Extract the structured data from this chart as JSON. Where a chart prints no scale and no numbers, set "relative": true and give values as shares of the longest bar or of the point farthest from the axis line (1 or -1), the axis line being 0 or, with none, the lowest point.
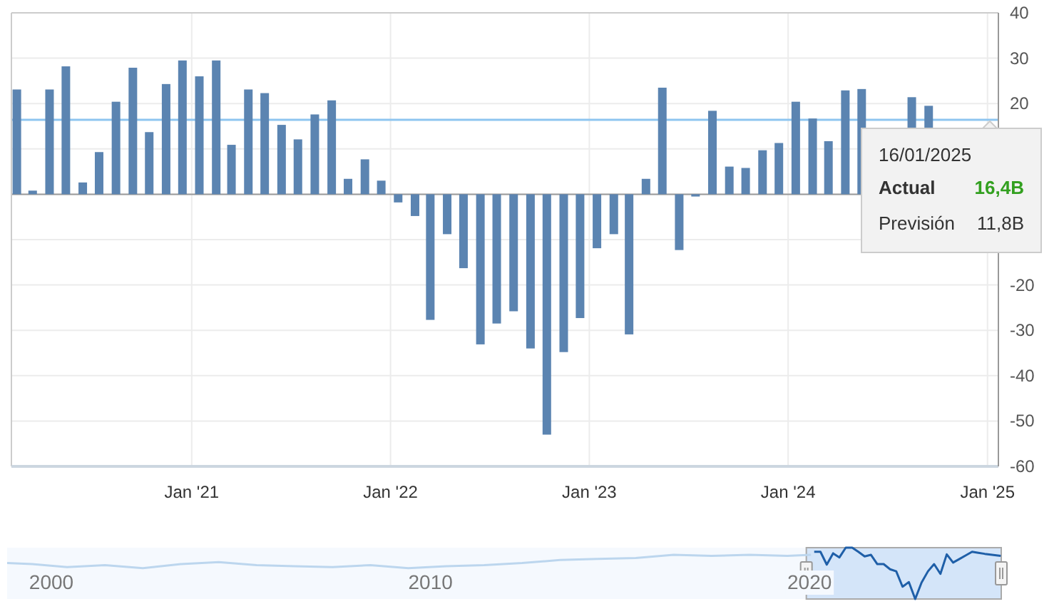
{
  "chart_data": [
    {
      "type": "bar",
      "x": [
        "2020-02-15",
        "2020-03-15",
        "2020-04-15",
        "2020-05-15",
        "2020-06-15",
        "2020-07-15",
        "2020-08-15",
        "2020-09-15",
        "2020-10-15",
        "2020-11-15",
        "2020-12-15",
        "2021-01-15",
        "2021-02-15",
        "2021-03-15",
        "2021-04-15",
        "2021-05-15",
        "2021-06-15",
        "2021-07-15",
        "2021-08-15",
        "2021-09-15",
        "2021-10-15",
        "2021-11-15",
        "2021-12-15",
        "2022-01-15",
        "2022-02-15",
        "2022-03-15",
        "2022-04-15",
        "2022-05-15",
        "2022-06-15",
        "2022-07-15",
        "2022-08-15",
        "2022-09-15",
        "2022-10-15",
        "2022-11-15",
        "2022-12-15",
        "2023-01-15",
        "2023-02-15",
        "2023-03-15",
        "2023-04-15",
        "2023-05-15",
        "2023-06-15",
        "2023-07-15",
        "2023-08-15",
        "2023-09-15",
        "2023-10-15",
        "2023-11-15",
        "2023-12-15",
        "2024-01-15",
        "2024-02-15",
        "2024-03-15",
        "2024-04-15",
        "2024-05-15",
        "2024-08-15",
        "2024-09-15"
      ],
      "values": [
        23.1,
        0.8,
        23.1,
        28.2,
        2.6,
        9.3,
        20.4,
        27.9,
        13.7,
        24.3,
        29.5,
        26.0,
        29.5,
        10.9,
        23.1,
        22.3,
        15.3,
        12.1,
        17.6,
        20.7,
        3.4,
        7.7,
        3.0,
        -1.8,
        -4.8,
        -27.7,
        -8.8,
        -16.3,
        -33.1,
        -28.5,
        -25.8,
        -34.0,
        -53.0,
        -34.8,
        -27.3,
        -11.9,
        -8.8,
        -30.9,
        3.4,
        23.5,
        -12.3,
        -0.5,
        18.4,
        6.1,
        5.8,
        9.7,
        11.3,
        20.4,
        16.7,
        11.7,
        22.9,
        23.2,
        21.4,
        19.5
      ],
      "color": "#5b84b1",
      "xlim": [
        "2020-02-05",
        "2025-01-21"
      ],
      "xticks": [
        {
          "value": "2021-01-01",
          "label": "Jan '21"
        },
        {
          "value": "2022-01-01",
          "label": "Jan '22"
        },
        {
          "value": "2023-01-01",
          "label": "Jan '23"
        },
        {
          "value": "2024-01-01",
          "label": "Jan '24"
        },
        {
          "value": "2025-01-01",
          "label": "Jan '25"
        }
      ],
      "ylim": [
        -60,
        40
      ],
      "yticks": [
        -60,
        -50,
        -40,
        -30,
        -20,
        {
          "value": -10,
          "label": null
        },
        {
          "value": 0,
          "label": null
        },
        {
          "value": 10,
          "label": null
        },
        20,
        30,
        40
      ],
      "grid": true,
      "ref_lines": [
        {
          "axis": "y",
          "value": 16.4,
          "color": "#8ec5f0"
        }
      ],
      "annotations": [
        "16/01/2025",
        "Actual",
        "16,4B",
        "Previsión",
        "11,8B"
      ]
    },
    {
      "type": "line",
      "relative": true,
      "series": [
        {
          "color": "#bcd6ee",
          "x": [
            "1998-11-01",
            "1999-07-01",
            "2000-06-01",
            "2001-06-01",
            "2002-06-01",
            "2003-06-01",
            "2004-06-01",
            "2005-06-01",
            "2006-06-01",
            "2007-06-01",
            "2008-06-01",
            "2009-06-01",
            "2010-06-01",
            "2011-06-01",
            "2012-06-01",
            "2013-06-01",
            "2014-06-01",
            "2015-06-01",
            "2016-06-01",
            "2017-06-01",
            "2018-06-01",
            "2019-06-01",
            "2020-01-15"
          ],
          "values": [
            0.7,
            0.68,
            0.62,
            0.66,
            0.6,
            0.68,
            0.72,
            0.66,
            0.64,
            0.62,
            0.66,
            0.6,
            0.64,
            0.66,
            0.7,
            0.76,
            0.78,
            0.8,
            0.86,
            0.84,
            0.86,
            0.84,
            0.86
          ]
        },
        {
          "color": "#1f5fa8",
          "x": [
            "2020-02-15",
            "2020-04-15",
            "2020-06-15",
            "2020-08-15",
            "2020-10-15",
            "2020-12-15",
            "2021-02-15",
            "2021-04-15",
            "2021-06-15",
            "2021-08-15",
            "2021-10-15",
            "2021-12-15",
            "2022-02-15",
            "2022-04-15",
            "2022-06-15",
            "2022-08-15",
            "2022-10-15",
            "2022-12-15",
            "2023-02-15",
            "2023-04-15",
            "2023-06-15",
            "2023-08-15",
            "2023-10-15",
            "2023-12-15",
            "2024-02-15",
            "2024-04-15",
            "2024-06-15",
            "2024-08-15",
            "2025-01-16"
          ],
          "values": [
            0.92,
            0.92,
            0.67,
            0.89,
            0.81,
            1.0,
            1.0,
            0.92,
            0.83,
            0.86,
            0.68,
            0.68,
            0.58,
            0.54,
            0.24,
            0.33,
            0,
            0.32,
            0.54,
            0.68,
            0.49,
            0.87,
            0.71,
            0.78,
            0.85,
            0.92,
            0.9,
            0.88,
            0.84
          ]
        }
      ],
      "xlim": [
        "1998-11-01",
        "2025-01-21"
      ],
      "xticks": [
        {
          "value": "2000-01-01",
          "label": "2000"
        },
        {
          "value": "2010-01-01",
          "label": "2010"
        },
        {
          "value": "2020-01-01",
          "label": "2020"
        }
      ],
      "bands": [
        {
          "axis": "x",
          "from": "2019-12-01",
          "to": "2025-01-21",
          "color": "#d4e5f9"
        }
      ]
    }
  ]
}
